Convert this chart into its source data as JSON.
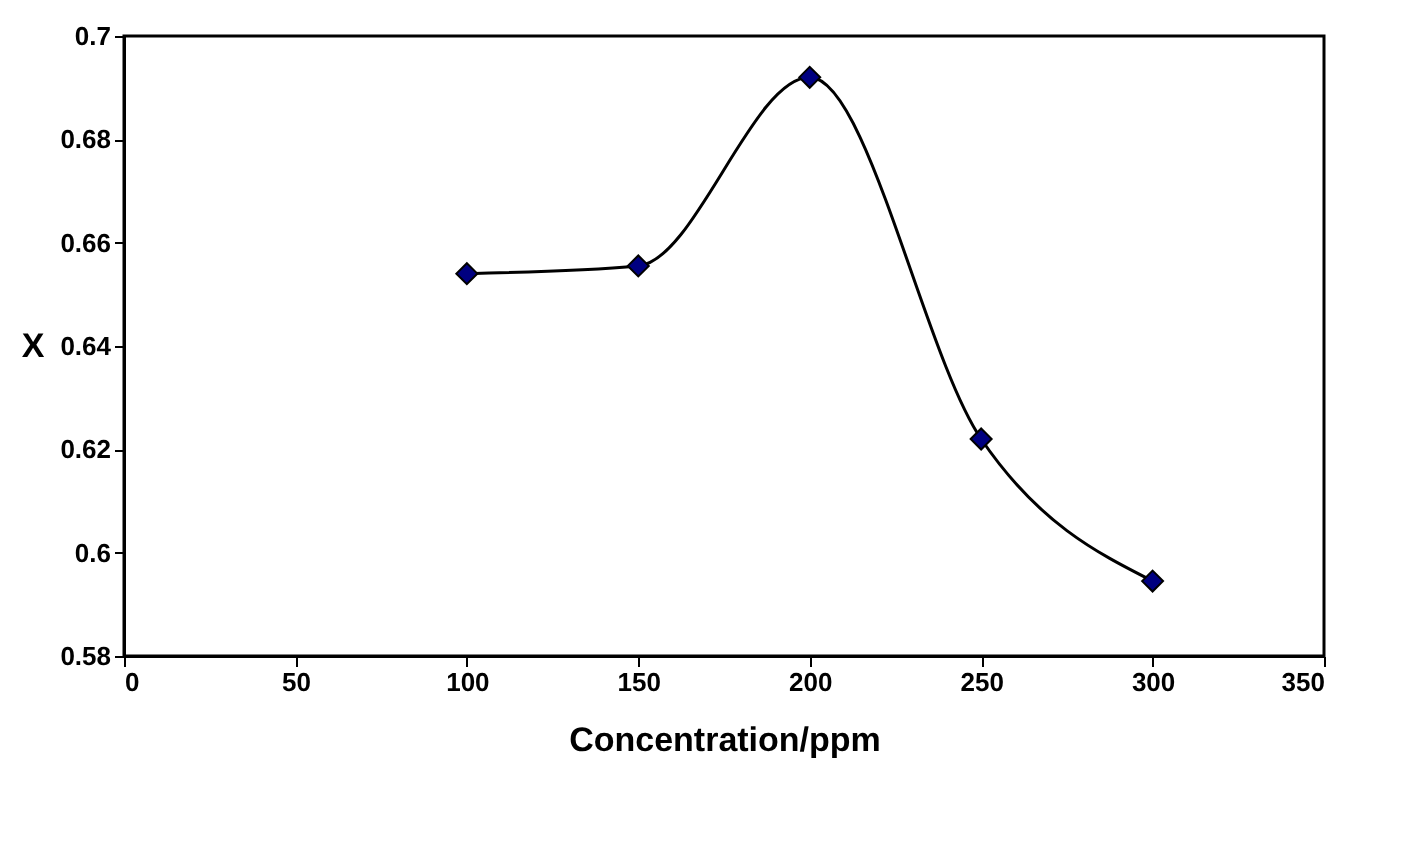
{
  "chart_data": {
    "type": "line",
    "xlabel": "Concentration/ppm",
    "ylabel": "X",
    "x": [
      100,
      150,
      200,
      250,
      300
    ],
    "series": [
      {
        "color": "#000080",
        "values": [
          0.654,
          0.6555,
          0.692,
          0.622,
          0.5945
        ]
      }
    ],
    "xlim": [
      0,
      350
    ],
    "xticks": [
      0,
      50,
      100,
      150,
      200,
      250,
      300,
      350
    ],
    "ylim": [
      0.58,
      0.7
    ],
    "yticks": [
      0.58,
      0.6,
      0.62,
      0.64,
      0.66,
      0.68,
      0.7
    ],
    "grid": false,
    "marker": "diamond",
    "line_style": "solid"
  }
}
